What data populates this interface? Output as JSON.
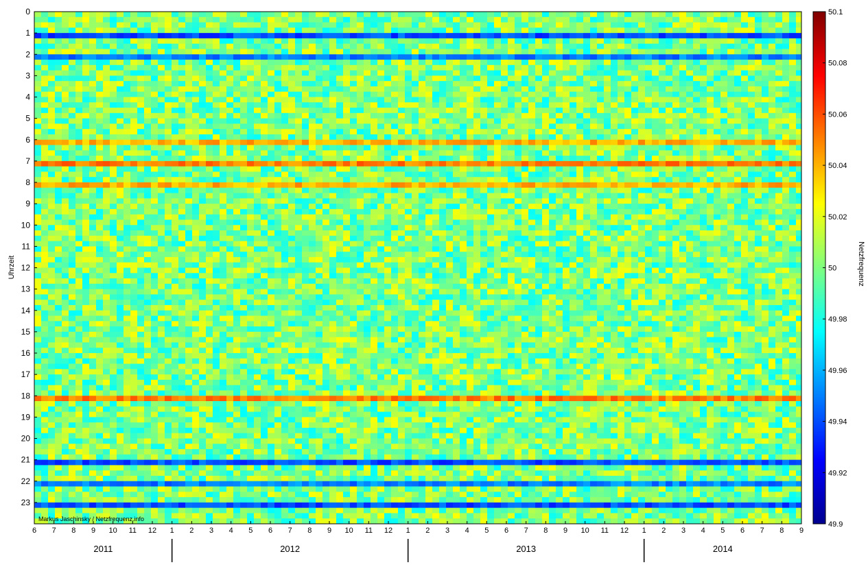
{
  "chart_data": {
    "type": "heatmap",
    "title": "",
    "ylabel": "Uhrzeit",
    "xlabel": "",
    "colorbar_label": "Netzfrequenz",
    "colorbar_range": [
      49.9,
      50.1
    ],
    "colorbar_ticks": [
      "50.1",
      "50.08",
      "50.06",
      "50.04",
      "50.02",
      "50",
      "49.98",
      "49.96",
      "49.94",
      "49.92",
      "49.9"
    ],
    "y_ticks": [
      "0",
      "1",
      "2",
      "3",
      "4",
      "5",
      "6",
      "7",
      "8",
      "9",
      "10",
      "11",
      "12",
      "13",
      "14",
      "15",
      "16",
      "17",
      "18",
      "19",
      "20",
      "21",
      "22",
      "23"
    ],
    "x_month_ticks": [
      "6",
      "7",
      "8",
      "9",
      "10",
      "11",
      "12",
      "1",
      "2",
      "3",
      "4",
      "5",
      "6",
      "7",
      "8",
      "9",
      "10",
      "11",
      "12",
      "1",
      "2",
      "3",
      "4",
      "5",
      "6",
      "7",
      "8",
      "9",
      "10",
      "11",
      "12",
      "1",
      "2",
      "3",
      "4",
      "5",
      "6",
      "7",
      "8",
      "9"
    ],
    "years": [
      "2011",
      "2012",
      "2013",
      "2014"
    ],
    "credit": "Markus Jaschinsky / Netzfrequenz.info",
    "colormap": "jet",
    "hourly_pattern": [
      {
        "hour": 1,
        "value": 49.94
      },
      {
        "hour": 2,
        "value": 49.95
      },
      {
        "hour": 6,
        "value": 50.04
      },
      {
        "hour": 7,
        "value": 50.05
      },
      {
        "hour": 8,
        "value": 50.04
      },
      {
        "hour": 18,
        "value": 50.05
      },
      {
        "hour": 21,
        "value": 49.94
      },
      {
        "hour": 22,
        "value": 49.95
      },
      {
        "hour": 23,
        "value": 49.94
      }
    ]
  }
}
